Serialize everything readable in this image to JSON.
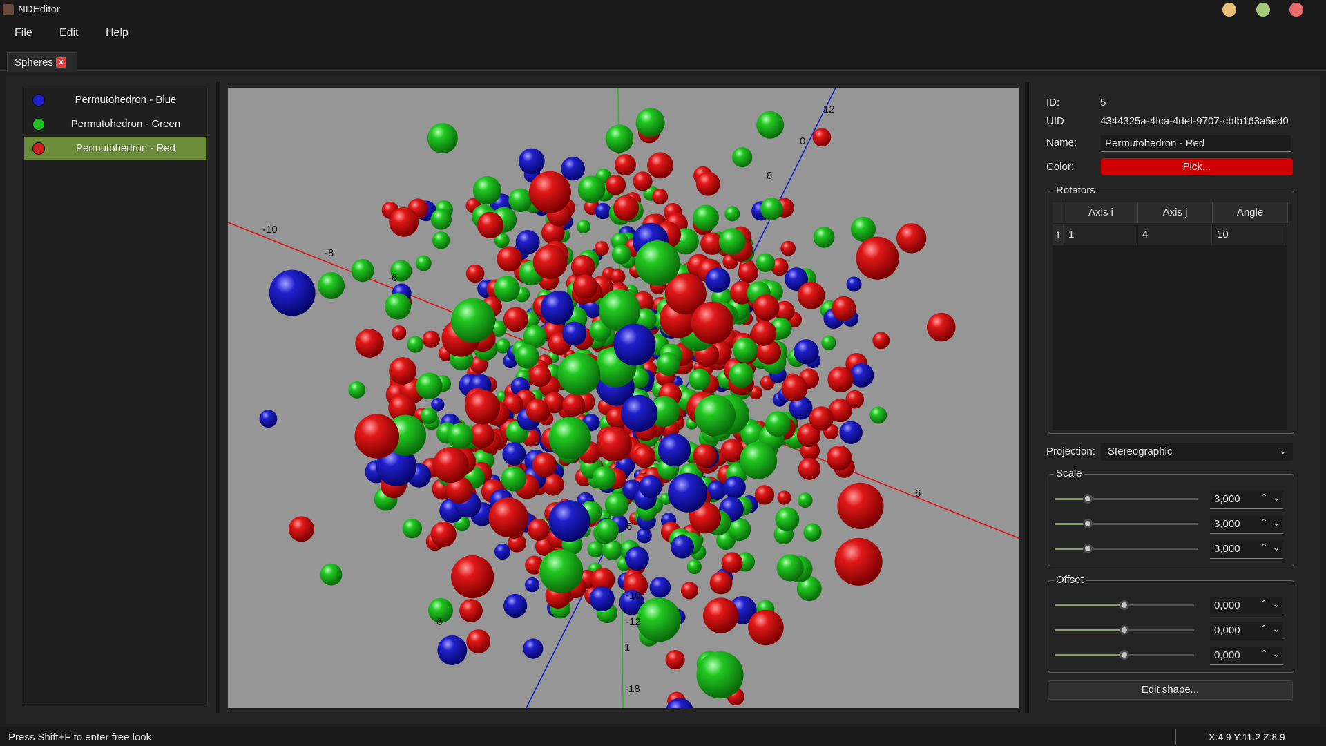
{
  "window": {
    "title": "NDEditor",
    "controls": [
      {
        "name": "minimize",
        "color": "#e8c07a"
      },
      {
        "name": "maximize",
        "color": "#a8c87a"
      },
      {
        "name": "close",
        "color": "#e86a6a"
      }
    ]
  },
  "menu": [
    "File",
    "Edit",
    "Help"
  ],
  "tabs": [
    {
      "label": "Spheres",
      "close_icon": "close-icon"
    }
  ],
  "shapes": [
    {
      "label": "Permutohedron - Blue",
      "color": "#1f1fcc",
      "selected": false
    },
    {
      "label": "Permutohedron - Green",
      "color": "#1fbf1f",
      "selected": false
    },
    {
      "label": "Permutohedron - Red",
      "color": "#cc1f1f",
      "selected": true
    }
  ],
  "viewport": {
    "background": "#969696",
    "axis_colors": {
      "red": "#e01010",
      "green": "#20c020",
      "blue": "#1a1ad0"
    },
    "axis_labels": [
      "12",
      "0",
      "8",
      "-10",
      "-8",
      "-6",
      "6",
      "-6",
      "-10",
      "-12",
      "-18",
      "6",
      "1"
    ]
  },
  "properties": {
    "id_label": "ID:",
    "id_value": "5",
    "uid_label": "UID:",
    "uid_value": "4344325a-4fca-4def-9707-cbfb163a5ed0",
    "name_label": "Name:",
    "name_value": "Permutohedron - Red",
    "color_label": "Color:",
    "color_button": "Pick...",
    "color_value": "#d00000"
  },
  "rotators": {
    "title": "Rotators",
    "headers": [
      "Axis i",
      "Axis j",
      "Angle"
    ],
    "rows": [
      {
        "index": "1",
        "axis_i": "1",
        "axis_j": "4",
        "angle": "10"
      }
    ]
  },
  "projection": {
    "label": "Projection:",
    "value": "Stereographic",
    "chevron": "chevron-down-icon"
  },
  "scale": {
    "title": "Scale",
    "sliders": [
      {
        "value": "3,000",
        "fraction": 0.23
      },
      {
        "value": "3,000",
        "fraction": 0.23
      },
      {
        "value": "3,000",
        "fraction": 0.23
      }
    ]
  },
  "offset": {
    "title": "Offset",
    "sliders": [
      {
        "value": "0,000",
        "fraction": 0.5
      },
      {
        "value": "0,000",
        "fraction": 0.5
      },
      {
        "value": "0,000",
        "fraction": 0.5
      }
    ]
  },
  "edit_shape_button": "Edit shape...",
  "status": {
    "hint": "Press Shift+F to enter free look",
    "coords": "X:4.9  Y:11.2  Z:8.9"
  }
}
